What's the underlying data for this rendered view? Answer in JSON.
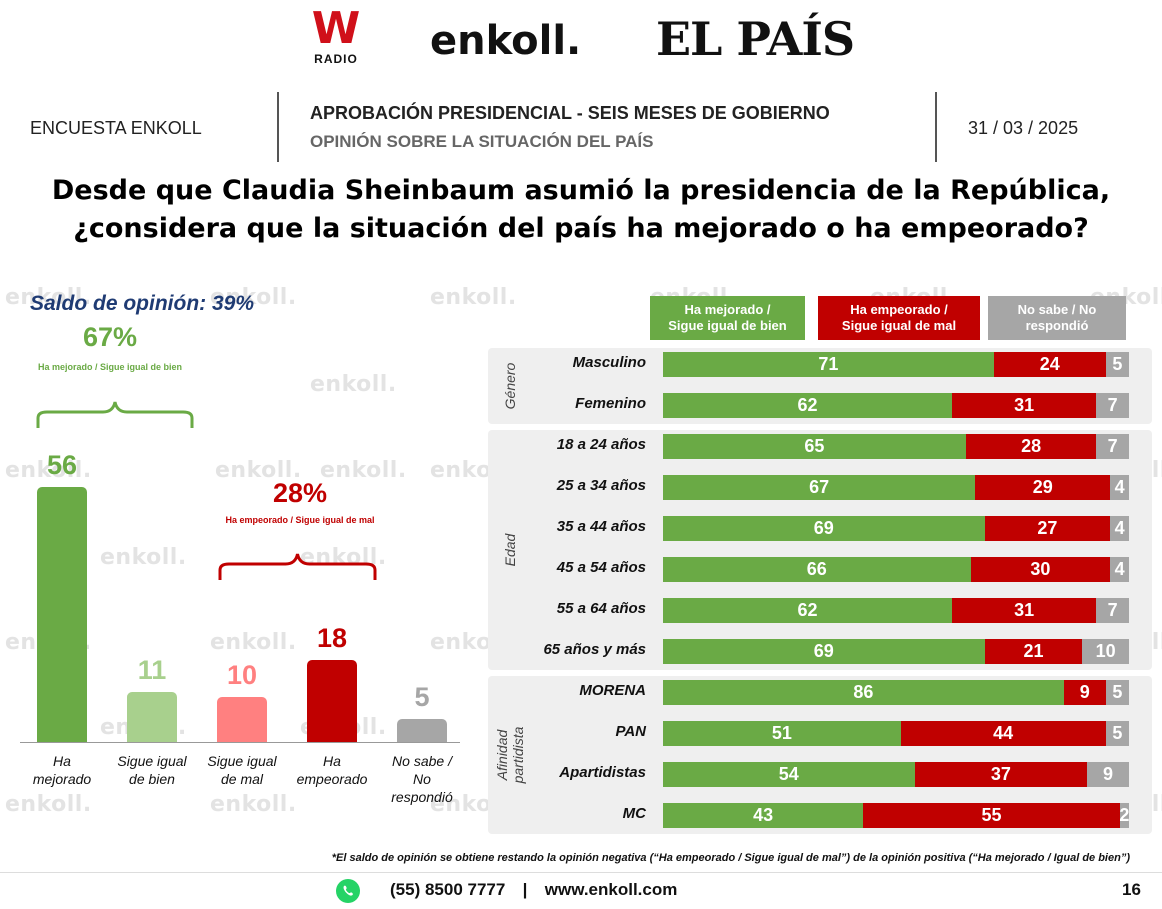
{
  "header": {
    "logo_w": "W",
    "logo_w_sub": "RADIO",
    "logo_enkoll": "enkoll.",
    "logo_pais": "EL PAÍS",
    "left": "ENCUESTA ENKOLL",
    "title": "APROBACIÓN PRESIDENCIAL - SEIS MESES DE GOBIERNO",
    "subtitle": "OPINIÓN SOBRE LA SITUACIÓN DEL PAÍS",
    "date": "31 / 03 / 2025"
  },
  "question_line1": "Desde que Claudia Sheinbaum asumió la presidencia de la República,",
  "question_line2": "¿considera que la situación del país ha mejorado o ha empeorado?",
  "watermark": "enkoll.",
  "colors": {
    "green": "#6aaa45",
    "light_green": "#a8d08d",
    "pink": "#ff8080",
    "red": "#c00000",
    "gray": "#a6a6a6",
    "navy": "#1f3b73"
  },
  "chart_data": [
    {
      "type": "bar",
      "saldo_label": "Saldo de opinión: 39%",
      "categories": [
        "Ha mejorado",
        "Sigue igual de bien",
        "Sigue igual de mal",
        "Ha empeorado",
        "No sabe / No respondió"
      ],
      "category_lines": [
        [
          "Ha",
          "mejorado"
        ],
        [
          "Sigue igual",
          "de bien"
        ],
        [
          "Sigue igual",
          "de mal"
        ],
        [
          "Ha",
          "empeorado"
        ],
        [
          "No sabe /",
          "No",
          "respondió"
        ]
      ],
      "values": [
        56,
        11,
        10,
        18,
        5
      ],
      "labels": [
        "56",
        "11",
        "10",
        "18",
        "5"
      ],
      "bar_colors": [
        "#6aaa45",
        "#a8d08d",
        "#ff8080",
        "#c00000",
        "#a6a6a6"
      ],
      "ylim": [
        0,
        60
      ],
      "groups": [
        {
          "pct": "67%",
          "label": "Ha mejorado / Sigue igual de bien",
          "color": "#6aaa45"
        },
        {
          "pct": "28%",
          "label": "Ha empeorado / Sigue igual de mal",
          "color": "#c00000"
        }
      ]
    },
    {
      "type": "bar",
      "stacked": true,
      "orientation": "horizontal",
      "legend": [
        "Ha mejorado / Sigue igual de bien",
        "Ha empeorado / Sigue igual de mal",
        "No sabe / No respondió"
      ],
      "legend_lines": [
        [
          "Ha mejorado /",
          "Sigue igual de bien"
        ],
        [
          "Ha empeorado /",
          "Sigue igual de mal"
        ],
        [
          "No sabe / No",
          "respondió"
        ]
      ],
      "legend_placement": "top",
      "groups": [
        {
          "name": "Género",
          "rows": [
            {
              "label": "Masculino",
              "values": [
                71,
                24,
                5
              ]
            },
            {
              "label": "Femenino",
              "values": [
                62,
                31,
                7
              ]
            }
          ]
        },
        {
          "name": "Edad",
          "rows": [
            {
              "label": "18 a 24 años",
              "values": [
                65,
                28,
                7
              ]
            },
            {
              "label": "25 a 34 años",
              "values": [
                67,
                29,
                4
              ]
            },
            {
              "label": "35 a 44 años",
              "values": [
                69,
                27,
                4
              ]
            },
            {
              "label": "45 a 54 años",
              "values": [
                66,
                30,
                4
              ]
            },
            {
              "label": "55 a 64 años",
              "values": [
                62,
                31,
                7
              ]
            },
            {
              "label": "65 años y más",
              "values": [
                69,
                21,
                10
              ]
            }
          ]
        },
        {
          "name": "Afinidad partidista",
          "name_lines": [
            "Afinidad",
            "partidista"
          ],
          "rows": [
            {
              "label": "MORENA",
              "values": [
                86,
                9,
                5
              ]
            },
            {
              "label": "PAN",
              "values": [
                51,
                44,
                5
              ]
            },
            {
              "label": "Apartidistas",
              "values": [
                54,
                37,
                9
              ]
            },
            {
              "label": "MC",
              "values": [
                43,
                55,
                2
              ]
            }
          ]
        }
      ]
    }
  ],
  "footnote": "*El saldo de opinión se obtiene restando la opinión negativa (“Ha empeorado / Sigue igual de mal”) de la opinión positiva (“Ha mejorado / Igual de bien”)",
  "footer": {
    "phone": "(55) 8500 7777",
    "separator": "|",
    "web": "www.enkoll.com",
    "page": "16"
  }
}
